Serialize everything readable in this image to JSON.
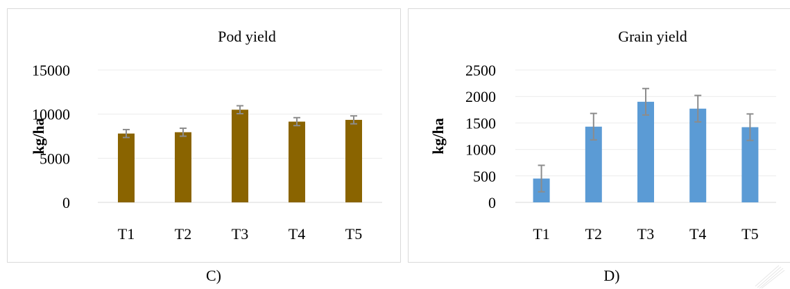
{
  "chart_data": [
    {
      "type": "bar",
      "title": "Pod yield",
      "xlabel": "",
      "ylabel": "kg/ha",
      "categories": [
        "T1",
        "T2",
        "T3",
        "T4",
        "T5"
      ],
      "values": [
        7800,
        7950,
        10500,
        9150,
        9350
      ],
      "error": [
        450,
        450,
        450,
        450,
        450
      ],
      "ylim": [
        0,
        15000
      ],
      "yticks": [
        0,
        5000,
        10000,
        15000
      ],
      "grid": true,
      "color": "#8a6400"
    },
    {
      "type": "bar",
      "title": "Grain yield",
      "xlabel": "",
      "ylabel": "kg/ha",
      "categories": [
        "T1",
        "T2",
        "T3",
        "T4",
        "T5"
      ],
      "values": [
        450,
        1430,
        1900,
        1770,
        1420
      ],
      "error": [
        250,
        250,
        250,
        250,
        250
      ],
      "ylim": [
        0,
        2500
      ],
      "yticks": [
        0,
        500,
        1000,
        1500,
        2000,
        2500
      ],
      "grid": true,
      "color": "#5b9bd5"
    }
  ],
  "captions": [
    "C)",
    "D)"
  ],
  "colors": {
    "error_bar": "#8c8c8c",
    "grid": "#ececec",
    "axis": "#d9d9d9"
  }
}
